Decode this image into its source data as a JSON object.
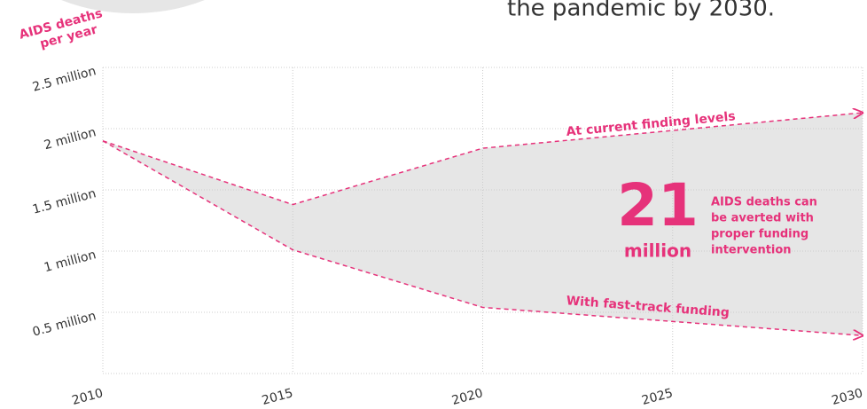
{
  "chart_data": {
    "type": "line",
    "intro_text": "the pandemic by 2030.",
    "ylabel": [
      "AIDS deaths",
      "per year"
    ],
    "x": [
      2010,
      2015,
      2020,
      2030
    ],
    "series": [
      {
        "name": "At current finding levels",
        "color": "#e6327a",
        "values": [
          1.9,
          1.38,
          1.84,
          2.13
        ]
      },
      {
        "name": "With fast-track funding",
        "color": "#e6327a",
        "values": [
          1.9,
          1.01,
          0.54,
          0.31
        ]
      }
    ],
    "xlim": [
      2010,
      2030
    ],
    "xticks": [
      2010,
      2015,
      2020,
      2025,
      2030
    ],
    "ylim": [
      0,
      2.5
    ],
    "yticks": [
      {
        "value": 0.5,
        "label": "0.5 million"
      },
      {
        "value": 1,
        "label": "1 million"
      },
      {
        "value": 1.5,
        "label": "1.5 million"
      },
      {
        "value": 2,
        "label": "2 million"
      },
      {
        "value": 2.5,
        "label": "2.5 million"
      }
    ],
    "grid": true,
    "area_color": "#e6e6e6",
    "annotation": {
      "number": "21",
      "unit": "million",
      "text": [
        "AIDS deaths can",
        "be averted with",
        "proper funding",
        "intervention"
      ]
    }
  }
}
